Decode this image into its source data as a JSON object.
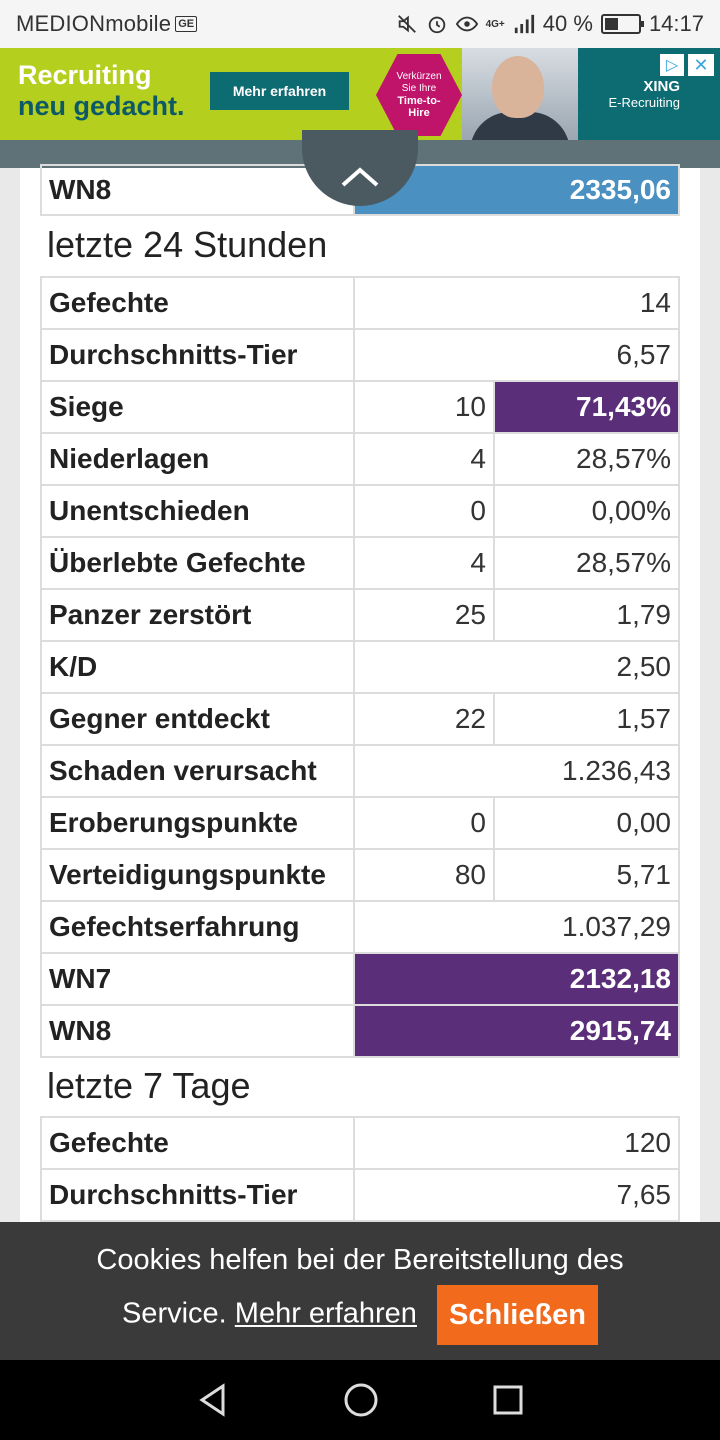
{
  "status_bar": {
    "carrier": "MEDIONmobile",
    "carrier_badge": "GE",
    "network": "4G+",
    "battery": "40 %",
    "battery_level": 0.4,
    "time": "14:17"
  },
  "ad": {
    "headline_line1": "Recruiting",
    "headline_line2": "neu gedacht.",
    "cta": "Mehr erfahren",
    "badge_line1": "Verkürzen",
    "badge_line2": "Sie Ihre",
    "badge_line3": "Time-to-",
    "badge_line4": "Hire",
    "brand": "XING",
    "brand_sub": "E-Recruiting",
    "colors": {
      "background": "#b5cf1f",
      "accent": "#0d6b72",
      "badge": "#c0146b"
    }
  },
  "top_table": {
    "label": "WN8",
    "value": "2335,06"
  },
  "section_24h": {
    "title": "letzte 24 Stunden",
    "rows": [
      {
        "label": "Gefechte",
        "value": "14"
      },
      {
        "label": "Durchschnitts-Tier",
        "value": "6,57"
      },
      {
        "label": "Siege",
        "count": "10",
        "value": "71,43%"
      },
      {
        "label": "Niederlagen",
        "count": "4",
        "value": "28,57%"
      },
      {
        "label": "Unentschieden",
        "count": "0",
        "value": "0,00%"
      },
      {
        "label": "Überlebte Gefechte",
        "count": "4",
        "value": "28,57%"
      },
      {
        "label": "Panzer zerstört",
        "count": "25",
        "value": "1,79"
      },
      {
        "label": "K/D",
        "value": "2,50"
      },
      {
        "label": "Gegner entdeckt",
        "count": "22",
        "value": "1,57"
      },
      {
        "label": "Schaden verursacht",
        "value": "1.236,43"
      },
      {
        "label": "Eroberungspunkte",
        "count": "0",
        "value": "0,00"
      },
      {
        "label": "Verteidigungspunkte",
        "count": "80",
        "value": "5,71"
      },
      {
        "label": "Gefechtserfahrung",
        "value": "1.037,29"
      },
      {
        "label": "WN7",
        "value": "2132,18"
      },
      {
        "label": "WN8",
        "value": "2915,74"
      }
    ]
  },
  "section_7d": {
    "title": "letzte 7 Tage",
    "rows": [
      {
        "label": "Gefechte",
        "value": "120"
      },
      {
        "label": "Durchschnitts-Tier",
        "value": "7,65"
      }
    ]
  },
  "cookie_banner": {
    "text_line1": "Cookies helfen bei der Bereitstellung des",
    "text_line2": "Service.",
    "link": "Mehr erfahren",
    "close": "Schließen"
  },
  "colors": {
    "highlight_purple": "#5a2e78",
    "wn8_blue": "#4a90c0",
    "cookie_button": "#f26a1b"
  }
}
